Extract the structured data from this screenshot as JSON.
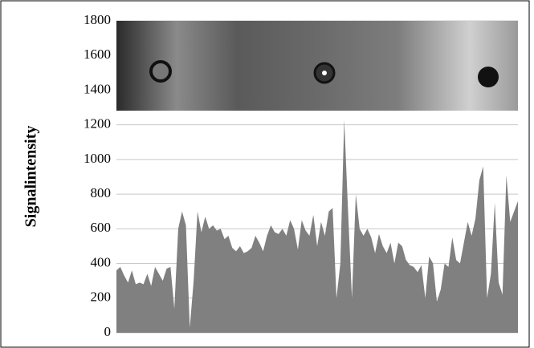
{
  "chart_data": {
    "type": "area",
    "y_label": "Signalintensity",
    "color": "#808080",
    "values": [
      360,
      380,
      330,
      290,
      360,
      280,
      290,
      280,
      340,
      270,
      380,
      340,
      300,
      370,
      380,
      140,
      600,
      700,
      620,
      30,
      300,
      700,
      580,
      670,
      600,
      620,
      590,
      600,
      540,
      560,
      490,
      470,
      500,
      460,
      470,
      490,
      560,
      520,
      470,
      560,
      620,
      580,
      570,
      600,
      560,
      650,
      600,
      480,
      650,
      590,
      560,
      680,
      500,
      640,
      560,
      700,
      720,
      200,
      400,
      1230,
      700,
      200,
      800,
      600,
      560,
      600,
      550,
      460,
      570,
      500,
      460,
      520,
      400,
      520,
      500,
      420,
      390,
      380,
      350,
      390,
      200,
      440,
      400,
      180,
      250,
      400,
      380,
      550,
      420,
      400,
      520,
      640,
      560,
      660,
      880,
      960,
      200,
      340,
      750,
      290,
      220,
      910,
      640,
      700,
      760
    ],
    "ylim": [
      0,
      1800
    ],
    "yticks": [
      0,
      200,
      400,
      600,
      800,
      1000,
      1200,
      1400,
      1600,
      1800
    ],
    "grid": true
  }
}
